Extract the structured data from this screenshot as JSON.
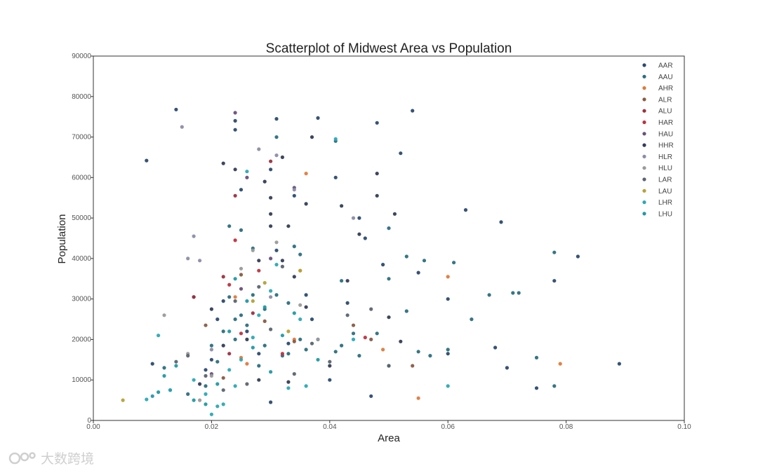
{
  "chart_data": {
    "type": "scatter",
    "title": "Scatterplot of Midwest Area vs Population",
    "xlabel": "Area",
    "ylabel": "Population",
    "xlim": [
      0.0,
      0.1
    ],
    "ylim": [
      0,
      90000
    ],
    "grid": false,
    "legend_position": "top-right",
    "x_ticks": [
      "0.00",
      "0.02",
      "0.04",
      "0.06",
      "0.08",
      "0.10"
    ],
    "y_ticks": [
      "0",
      "10000",
      "20000",
      "30000",
      "40000",
      "50000",
      "60000",
      "70000",
      "80000",
      "90000"
    ],
    "series": [
      {
        "name": "AAR",
        "color": "#2b4a6f",
        "points": [
          [
            0.009,
            64200
          ],
          [
            0.014,
            76800
          ],
          [
            0.024,
            71800
          ],
          [
            0.024,
            74000
          ],
          [
            0.03,
            62000
          ],
          [
            0.031,
            74500
          ],
          [
            0.034,
            55500
          ],
          [
            0.038,
            74700
          ],
          [
            0.041,
            60000
          ],
          [
            0.045,
            50000
          ],
          [
            0.048,
            73500
          ],
          [
            0.052,
            66000
          ],
          [
            0.054,
            76500
          ],
          [
            0.063,
            52000
          ],
          [
            0.069,
            49000
          ],
          [
            0.046,
            45000
          ],
          [
            0.082,
            40500
          ],
          [
            0.089,
            14000
          ],
          [
            0.078,
            34500
          ],
          [
            0.07,
            13000
          ],
          [
            0.075,
            8000
          ],
          [
            0.06,
            30000
          ],
          [
            0.06,
            16500
          ],
          [
            0.047,
            6000
          ],
          [
            0.04,
            10000
          ],
          [
            0.037,
            25000
          ],
          [
            0.031,
            42000
          ],
          [
            0.03,
            4500
          ],
          [
            0.028,
            16500
          ],
          [
            0.025,
            57000
          ],
          [
            0.022,
            29500
          ],
          [
            0.021,
            25000
          ],
          [
            0.019,
            12500
          ],
          [
            0.017,
            30500
          ],
          [
            0.013,
            7500
          ],
          [
            0.01,
            14000
          ],
          [
            0.02,
            15000
          ],
          [
            0.026,
            22000
          ],
          [
            0.033,
            19000
          ],
          [
            0.036,
            31000
          ],
          [
            0.043,
            29000
          ],
          [
            0.049,
            38500
          ],
          [
            0.055,
            36500
          ],
          [
            0.068,
            18000
          ]
        ]
      },
      {
        "name": "AAU",
        "color": "#2a6f7f",
        "points": [
          [
            0.023,
            48000
          ],
          [
            0.025,
            47000
          ],
          [
            0.027,
            42500
          ],
          [
            0.031,
            70000
          ],
          [
            0.034,
            43000
          ],
          [
            0.035,
            41000
          ],
          [
            0.041,
            69000
          ],
          [
            0.042,
            34500
          ],
          [
            0.05,
            47500
          ],
          [
            0.053,
            40500
          ],
          [
            0.056,
            39500
          ],
          [
            0.061,
            39000
          ],
          [
            0.067,
            31000
          ],
          [
            0.071,
            31500
          ],
          [
            0.072,
            31500
          ],
          [
            0.078,
            41500
          ],
          [
            0.055,
            17000
          ],
          [
            0.057,
            16000
          ],
          [
            0.06,
            17500
          ],
          [
            0.053,
            27000
          ],
          [
            0.05,
            35000
          ],
          [
            0.048,
            21500
          ],
          [
            0.044,
            21500
          ],
          [
            0.042,
            18500
          ],
          [
            0.038,
            20000
          ],
          [
            0.035,
            20000
          ],
          [
            0.033,
            16500
          ],
          [
            0.029,
            18500
          ],
          [
            0.026,
            23500
          ],
          [
            0.024,
            25000
          ],
          [
            0.021,
            14500
          ],
          [
            0.02,
            18500
          ],
          [
            0.023,
            30500
          ],
          [
            0.025,
            26000
          ],
          [
            0.027,
            31000
          ],
          [
            0.029,
            27500
          ],
          [
            0.031,
            31000
          ],
          [
            0.033,
            29000
          ],
          [
            0.019,
            8500
          ],
          [
            0.016,
            6500
          ],
          [
            0.012,
            13000
          ],
          [
            0.064,
            25000
          ],
          [
            0.075,
            15500
          ],
          [
            0.078,
            8500
          ],
          [
            0.05,
            13500
          ],
          [
            0.045,
            16000
          ],
          [
            0.041,
            17000
          ],
          [
            0.036,
            17500
          ],
          [
            0.032,
            16000
          ],
          [
            0.028,
            13500
          ],
          [
            0.024,
            20000
          ],
          [
            0.022,
            22000
          ]
        ]
      },
      {
        "name": "AHR",
        "color": "#e07a3a",
        "points": [
          [
            0.024,
            30500
          ],
          [
            0.025,
            15500
          ],
          [
            0.026,
            14000
          ],
          [
            0.035,
            37000
          ],
          [
            0.036,
            61000
          ],
          [
            0.049,
            17500
          ],
          [
            0.055,
            5500
          ],
          [
            0.06,
            35500
          ],
          [
            0.079,
            14000
          ],
          [
            0.034,
            20000
          ]
        ]
      },
      {
        "name": "ALR",
        "color": "#8a5a44",
        "points": [
          [
            0.019,
            23500
          ],
          [
            0.022,
            10500
          ],
          [
            0.025,
            36000
          ],
          [
            0.029,
            24500
          ],
          [
            0.034,
            19500
          ],
          [
            0.044,
            23500
          ],
          [
            0.047,
            20000
          ],
          [
            0.054,
            13500
          ]
        ]
      },
      {
        "name": "ALU",
        "color": "#9e2f3f",
        "points": [
          [
            0.017,
            30500
          ],
          [
            0.022,
            35500
          ],
          [
            0.024,
            55500
          ],
          [
            0.023,
            16500
          ],
          [
            0.027,
            26500
          ],
          [
            0.03,
            64000
          ]
        ]
      },
      {
        "name": "HAR",
        "color": "#c1303f",
        "points": [
          [
            0.023,
            33500
          ],
          [
            0.024,
            44500
          ],
          [
            0.028,
            37000
          ],
          [
            0.032,
            16500
          ],
          [
            0.046,
            20500
          ],
          [
            0.025,
            21500
          ]
        ]
      },
      {
        "name": "HAU",
        "color": "#6a4f7a",
        "points": [
          [
            0.024,
            76000
          ],
          [
            0.026,
            60000
          ],
          [
            0.03,
            40000
          ],
          [
            0.034,
            57500
          ],
          [
            0.02,
            11500
          ],
          [
            0.025,
            32500
          ]
        ]
      },
      {
        "name": "HHR",
        "color": "#333d55",
        "points": [
          [
            0.02,
            27500
          ],
          [
            0.022,
            63500
          ],
          [
            0.024,
            62000
          ],
          [
            0.028,
            39500
          ],
          [
            0.03,
            55000
          ],
          [
            0.032,
            65000
          ],
          [
            0.033,
            48000
          ],
          [
            0.034,
            35500
          ],
          [
            0.036,
            53500
          ],
          [
            0.037,
            70000
          ],
          [
            0.04,
            13500
          ],
          [
            0.043,
            34500
          ],
          [
            0.045,
            46000
          ],
          [
            0.048,
            55500
          ],
          [
            0.048,
            61000
          ],
          [
            0.051,
            51000
          ],
          [
            0.052,
            19500
          ],
          [
            0.03,
            48000
          ],
          [
            0.03,
            51000
          ],
          [
            0.026,
            20000
          ],
          [
            0.022,
            18500
          ],
          [
            0.018,
            9000
          ],
          [
            0.028,
            10000
          ],
          [
            0.029,
            59000
          ],
          [
            0.032,
            39500
          ],
          [
            0.033,
            9500
          ],
          [
            0.036,
            28000
          ],
          [
            0.042,
            53000
          ],
          [
            0.05,
            25500
          ]
        ]
      },
      {
        "name": "HLR",
        "color": "#8c8ca8",
        "points": [
          [
            0.015,
            72500
          ],
          [
            0.016,
            40000
          ],
          [
            0.017,
            45500
          ],
          [
            0.018,
            39500
          ],
          [
            0.028,
            67000
          ],
          [
            0.031,
            65500
          ],
          [
            0.044,
            50000
          ],
          [
            0.034,
            57000
          ],
          [
            0.03,
            30500
          ],
          [
            0.02,
            17500
          ]
        ]
      },
      {
        "name": "HLU",
        "color": "#9a9a9a",
        "points": [
          [
            0.012,
            26000
          ],
          [
            0.016,
            16500
          ],
          [
            0.018,
            5000
          ],
          [
            0.02,
            11000
          ],
          [
            0.025,
            37500
          ],
          [
            0.027,
            42000
          ],
          [
            0.031,
            44000
          ],
          [
            0.035,
            28500
          ],
          [
            0.038,
            20000
          ]
        ]
      },
      {
        "name": "LAR",
        "color": "#5a6470",
        "points": [
          [
            0.014,
            14500
          ],
          [
            0.016,
            16000
          ],
          [
            0.019,
            11000
          ],
          [
            0.022,
            7500
          ],
          [
            0.024,
            29500
          ],
          [
            0.026,
            9000
          ],
          [
            0.028,
            33000
          ],
          [
            0.03,
            22500
          ],
          [
            0.032,
            38000
          ],
          [
            0.034,
            11500
          ],
          [
            0.037,
            19000
          ],
          [
            0.04,
            14500
          ],
          [
            0.043,
            26000
          ],
          [
            0.047,
            27500
          ],
          [
            0.05,
            13500
          ]
        ]
      },
      {
        "name": "LAU",
        "color": "#b5a235",
        "points": [
          [
            0.005,
            5000
          ],
          [
            0.027,
            29500
          ],
          [
            0.029,
            34000
          ],
          [
            0.033,
            22000
          ],
          [
            0.035,
            37000
          ]
        ]
      },
      {
        "name": "LHR",
        "color": "#2aa9b5",
        "points": [
          [
            0.009,
            5200
          ],
          [
            0.011,
            21000
          ],
          [
            0.013,
            7500
          ],
          [
            0.017,
            10000
          ],
          [
            0.019,
            6500
          ],
          [
            0.02,
            1500
          ],
          [
            0.021,
            3500
          ],
          [
            0.022,
            4000
          ],
          [
            0.023,
            12500
          ],
          [
            0.024,
            8500
          ],
          [
            0.025,
            15000
          ],
          [
            0.026,
            61500
          ],
          [
            0.027,
            20500
          ],
          [
            0.028,
            26000
          ],
          [
            0.03,
            32000
          ],
          [
            0.031,
            38500
          ],
          [
            0.033,
            8000
          ],
          [
            0.035,
            25000
          ],
          [
            0.036,
            8500
          ],
          [
            0.041,
            69500
          ],
          [
            0.044,
            20000
          ],
          [
            0.06,
            8500
          ]
        ]
      },
      {
        "name": "LHU",
        "color": "#1f9aa5",
        "points": [
          [
            0.01,
            6000
          ],
          [
            0.011,
            7000
          ],
          [
            0.012,
            11000
          ],
          [
            0.014,
            13500
          ],
          [
            0.017,
            5000
          ],
          [
            0.019,
            4000
          ],
          [
            0.021,
            9000
          ],
          [
            0.023,
            22000
          ],
          [
            0.024,
            35000
          ],
          [
            0.026,
            29500
          ],
          [
            0.027,
            18000
          ],
          [
            0.029,
            28000
          ],
          [
            0.03,
            12000
          ],
          [
            0.032,
            21000
          ],
          [
            0.034,
            26500
          ],
          [
            0.038,
            15000
          ]
        ]
      }
    ]
  },
  "watermark": {
    "text": "大数跨境"
  }
}
